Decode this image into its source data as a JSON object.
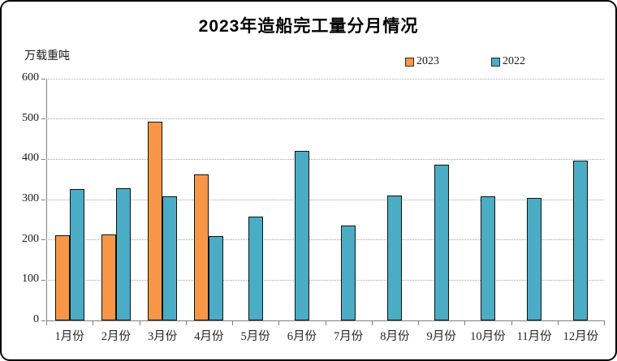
{
  "page": {
    "title": "2023年造船完工量分月情况",
    "unit_label": "万载重吨"
  },
  "chart_data": {
    "type": "bar",
    "title": "2023年造船完工量分月情况",
    "ylabel": "万载重吨",
    "xlabel": "",
    "ylim": [
      0,
      600
    ],
    "ytick_step": 100,
    "grid": true,
    "legend_position": "top-right",
    "categories": [
      "1月份",
      "2月份",
      "3月份",
      "4月份",
      "5月份",
      "6月份",
      "7月份",
      "8月份",
      "9月份",
      "10月份",
      "11月份",
      "12月份"
    ],
    "series": [
      {
        "name": "2023",
        "color": "#F79646",
        "border_color": "#121212",
        "values": [
          211,
          213,
          493,
          363,
          null,
          null,
          null,
          null,
          null,
          null,
          null,
          null
        ]
      },
      {
        "name": "2022",
        "color": "#4BACC6",
        "border_color": "#121212",
        "values": [
          327,
          329,
          309,
          209,
          257,
          421,
          236,
          310,
          386,
          308,
          304,
          397
        ]
      }
    ]
  }
}
